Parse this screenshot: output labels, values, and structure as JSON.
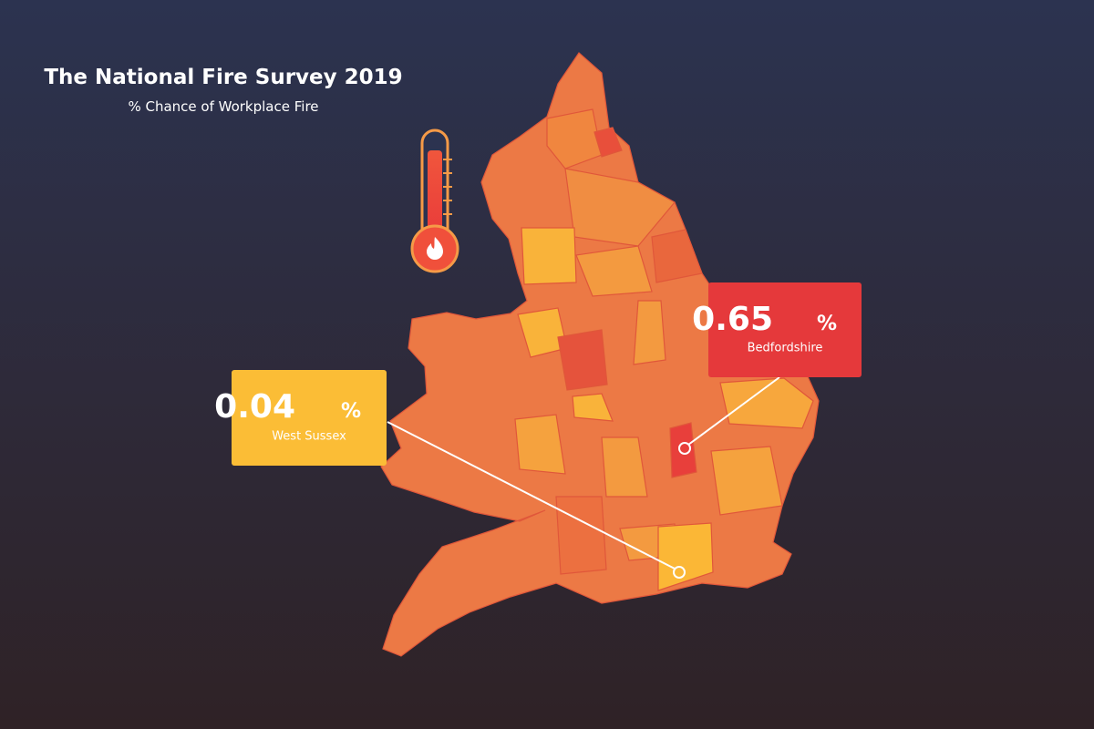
{
  "header": {
    "title": "The National Fire Survey 2019",
    "subtitle": "% Chance of Workplace Fire"
  },
  "callouts": [
    {
      "value": 0.65,
      "unit": "%",
      "place": "Bedfordshire"
    },
    {
      "value": 0.04,
      "unit": "%",
      "place": "West Sussex"
    }
  ]
}
